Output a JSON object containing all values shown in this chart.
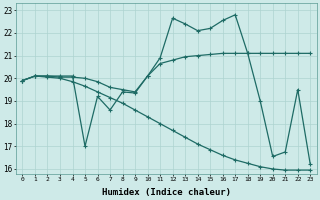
{
  "xlabel": "Humidex (Indice chaleur)",
  "background_color": "#ceeae8",
  "grid_color": "#aed4d0",
  "line_color": "#1e6b65",
  "xlim": [
    -0.5,
    23.5
  ],
  "ylim": [
    15.8,
    23.3
  ],
  "yticks": [
    16,
    17,
    18,
    19,
    20,
    21,
    22,
    23
  ],
  "xticks": [
    0,
    1,
    2,
    3,
    4,
    5,
    6,
    7,
    8,
    9,
    10,
    11,
    12,
    13,
    14,
    15,
    16,
    17,
    18,
    19,
    20,
    21,
    22,
    23
  ],
  "line1_x": [
    0,
    1,
    2,
    3,
    4,
    5,
    6,
    7,
    8,
    9,
    10,
    11,
    12,
    13,
    14,
    15,
    16,
    17,
    18,
    19,
    20,
    21,
    22,
    23
  ],
  "line1_y": [
    19.9,
    20.1,
    20.1,
    20.1,
    20.1,
    17.0,
    19.2,
    18.6,
    19.4,
    19.35,
    20.1,
    20.9,
    22.65,
    22.4,
    22.1,
    22.2,
    22.55,
    22.8,
    21.1,
    19.0,
    16.55,
    16.75,
    19.5,
    16.2
  ],
  "line2_x": [
    0,
    1,
    2,
    3,
    4,
    5,
    6,
    7,
    8,
    9,
    10,
    11,
    12,
    13,
    14,
    15,
    16,
    17,
    18,
    19,
    20,
    21,
    22,
    23
  ],
  "line2_y": [
    19.9,
    20.1,
    20.1,
    20.05,
    20.05,
    20.0,
    19.85,
    19.6,
    19.5,
    19.4,
    20.1,
    20.65,
    20.8,
    20.95,
    21.0,
    21.05,
    21.1,
    21.1,
    21.1,
    21.1,
    21.1,
    21.1,
    21.1,
    21.1
  ],
  "line3_x": [
    0,
    1,
    2,
    3,
    4,
    5,
    6,
    7,
    8,
    9,
    10,
    11,
    12,
    13,
    14,
    15,
    16,
    17,
    18,
    19,
    20,
    21,
    22,
    23
  ],
  "line3_y": [
    19.9,
    20.1,
    20.05,
    20.0,
    19.85,
    19.65,
    19.4,
    19.15,
    18.9,
    18.6,
    18.3,
    18.0,
    17.7,
    17.4,
    17.1,
    16.85,
    16.6,
    16.4,
    16.25,
    16.1,
    16.0,
    15.95,
    15.95,
    15.95
  ]
}
